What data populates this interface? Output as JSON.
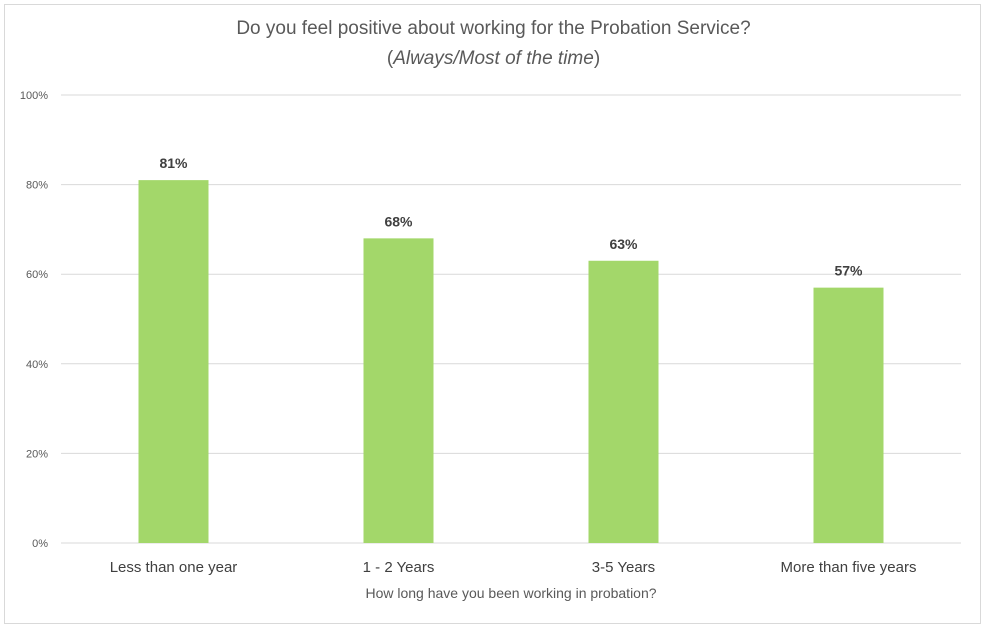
{
  "chart_data": {
    "type": "bar",
    "title": "Do you feel positive about working for the Probation Service?",
    "subtitle_open": "(",
    "subtitle_italic": "Always/Most of the time",
    "subtitle_close": ")",
    "xlabel": "How long have you been working in probation?",
    "ylabel": "",
    "categories": [
      "Less than one year",
      "1 - 2 Years",
      "3-5 Years",
      "More than five years"
    ],
    "values": [
      81,
      68,
      63,
      57
    ],
    "data_labels": [
      "81%",
      "68%",
      "63%",
      "57%"
    ],
    "ylim": [
      0,
      100
    ],
    "yticks": [
      0,
      20,
      40,
      60,
      80,
      100
    ],
    "ytick_labels": [
      "0%",
      "20%",
      "40%",
      "60%",
      "80%",
      "100%"
    ],
    "grid": true,
    "legend": "none",
    "bar_color": "#a3d76a",
    "gridline_color": "#d9d9d9"
  }
}
